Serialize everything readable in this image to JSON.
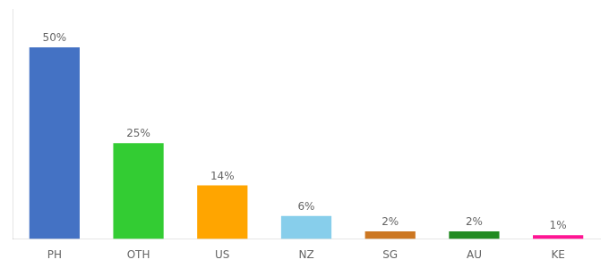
{
  "chart_data": {
    "type": "bar",
    "categories": [
      "PH",
      "OTH",
      "US",
      "NZ",
      "SG",
      "AU",
      "KE"
    ],
    "values": [
      50,
      25,
      14,
      6,
      2,
      2,
      1
    ],
    "value_labels": [
      "50%",
      "25%",
      "14%",
      "6%",
      "2%",
      "2%",
      "1%"
    ],
    "colors": [
      "#4472C4",
      "#33CC33",
      "#FFA500",
      "#87CEEB",
      "#CC7722",
      "#228B22",
      "#FF1493"
    ],
    "ylim": [
      0,
      60
    ],
    "grid": false,
    "data_labels": true,
    "tick_labels": "x"
  }
}
